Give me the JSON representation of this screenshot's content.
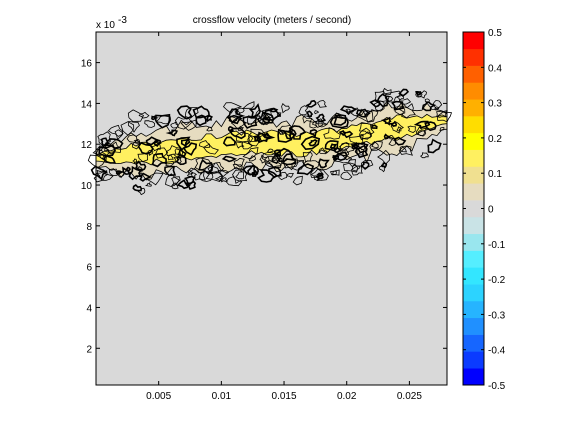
{
  "chart_data": {
    "type": "contour",
    "title": "crossflow velocity  (meters / second)",
    "xlabel": "",
    "ylabel": "",
    "x_ticks": [
      "0.005",
      "0.01",
      "0.015",
      "0.02",
      "0.025"
    ],
    "x_tick_values": [
      0.005,
      0.01,
      0.015,
      0.02,
      0.025
    ],
    "xlim": [
      0.0,
      0.028
    ],
    "y_ticks": [
      "2",
      "4",
      "6",
      "8",
      "10",
      "12",
      "14",
      "16"
    ],
    "y_tick_values": [
      2,
      4,
      6,
      8,
      10,
      12,
      14,
      16
    ],
    "ylim": [
      0.2,
      17.5
    ],
    "y_multiplier_base": "x 10",
    "y_multiplier_exponent": "-3",
    "grid": false,
    "background_color": "#d9d9d9",
    "band": {
      "x_range": [
        0.0,
        0.028
      ],
      "center_y": [
        11.3,
        11.6,
        11.8,
        12.1,
        12.0,
        12.3,
        12.8,
        13.2
      ],
      "outer_halfwidth": 1.9,
      "mid_halfwidth": 1.1,
      "inner_halfwidth": 0.5,
      "mid_level": 0.05,
      "inner_level": 0.15
    },
    "colorbar": {
      "levels": [
        -0.5,
        -0.45,
        -0.4,
        -0.35,
        -0.3,
        -0.25,
        -0.2,
        -0.15,
        -0.1,
        -0.05,
        0,
        0.05,
        0.1,
        0.15,
        0.2,
        0.25,
        0.3,
        0.35,
        0.4,
        0.45,
        0.5
      ],
      "tick_labels": [
        "-0.5",
        "-0.4",
        "-0.3",
        "-0.2",
        "-0.1",
        "0",
        "0.1",
        "0.2",
        "0.3",
        "0.4",
        "0.5"
      ],
      "tick_values": [
        -0.5,
        -0.4,
        -0.3,
        -0.2,
        -0.1,
        0,
        0.1,
        0.2,
        0.3,
        0.4,
        0.5
      ],
      "colors": [
        "#0000ff",
        "#0b3bff",
        "#1666ff",
        "#2090ff",
        "#26b4ff",
        "#2cd3ff",
        "#33e6ff",
        "#55eeff",
        "#99e6ee",
        "#c9e3e6",
        "#d9d9d9",
        "#e6dcc0",
        "#f0e090",
        "#fff060",
        "#ffff00",
        "#ffdd00",
        "#ffb000",
        "#ff8c00",
        "#ff6000",
        "#ff3000",
        "#ff0000"
      ]
    }
  }
}
